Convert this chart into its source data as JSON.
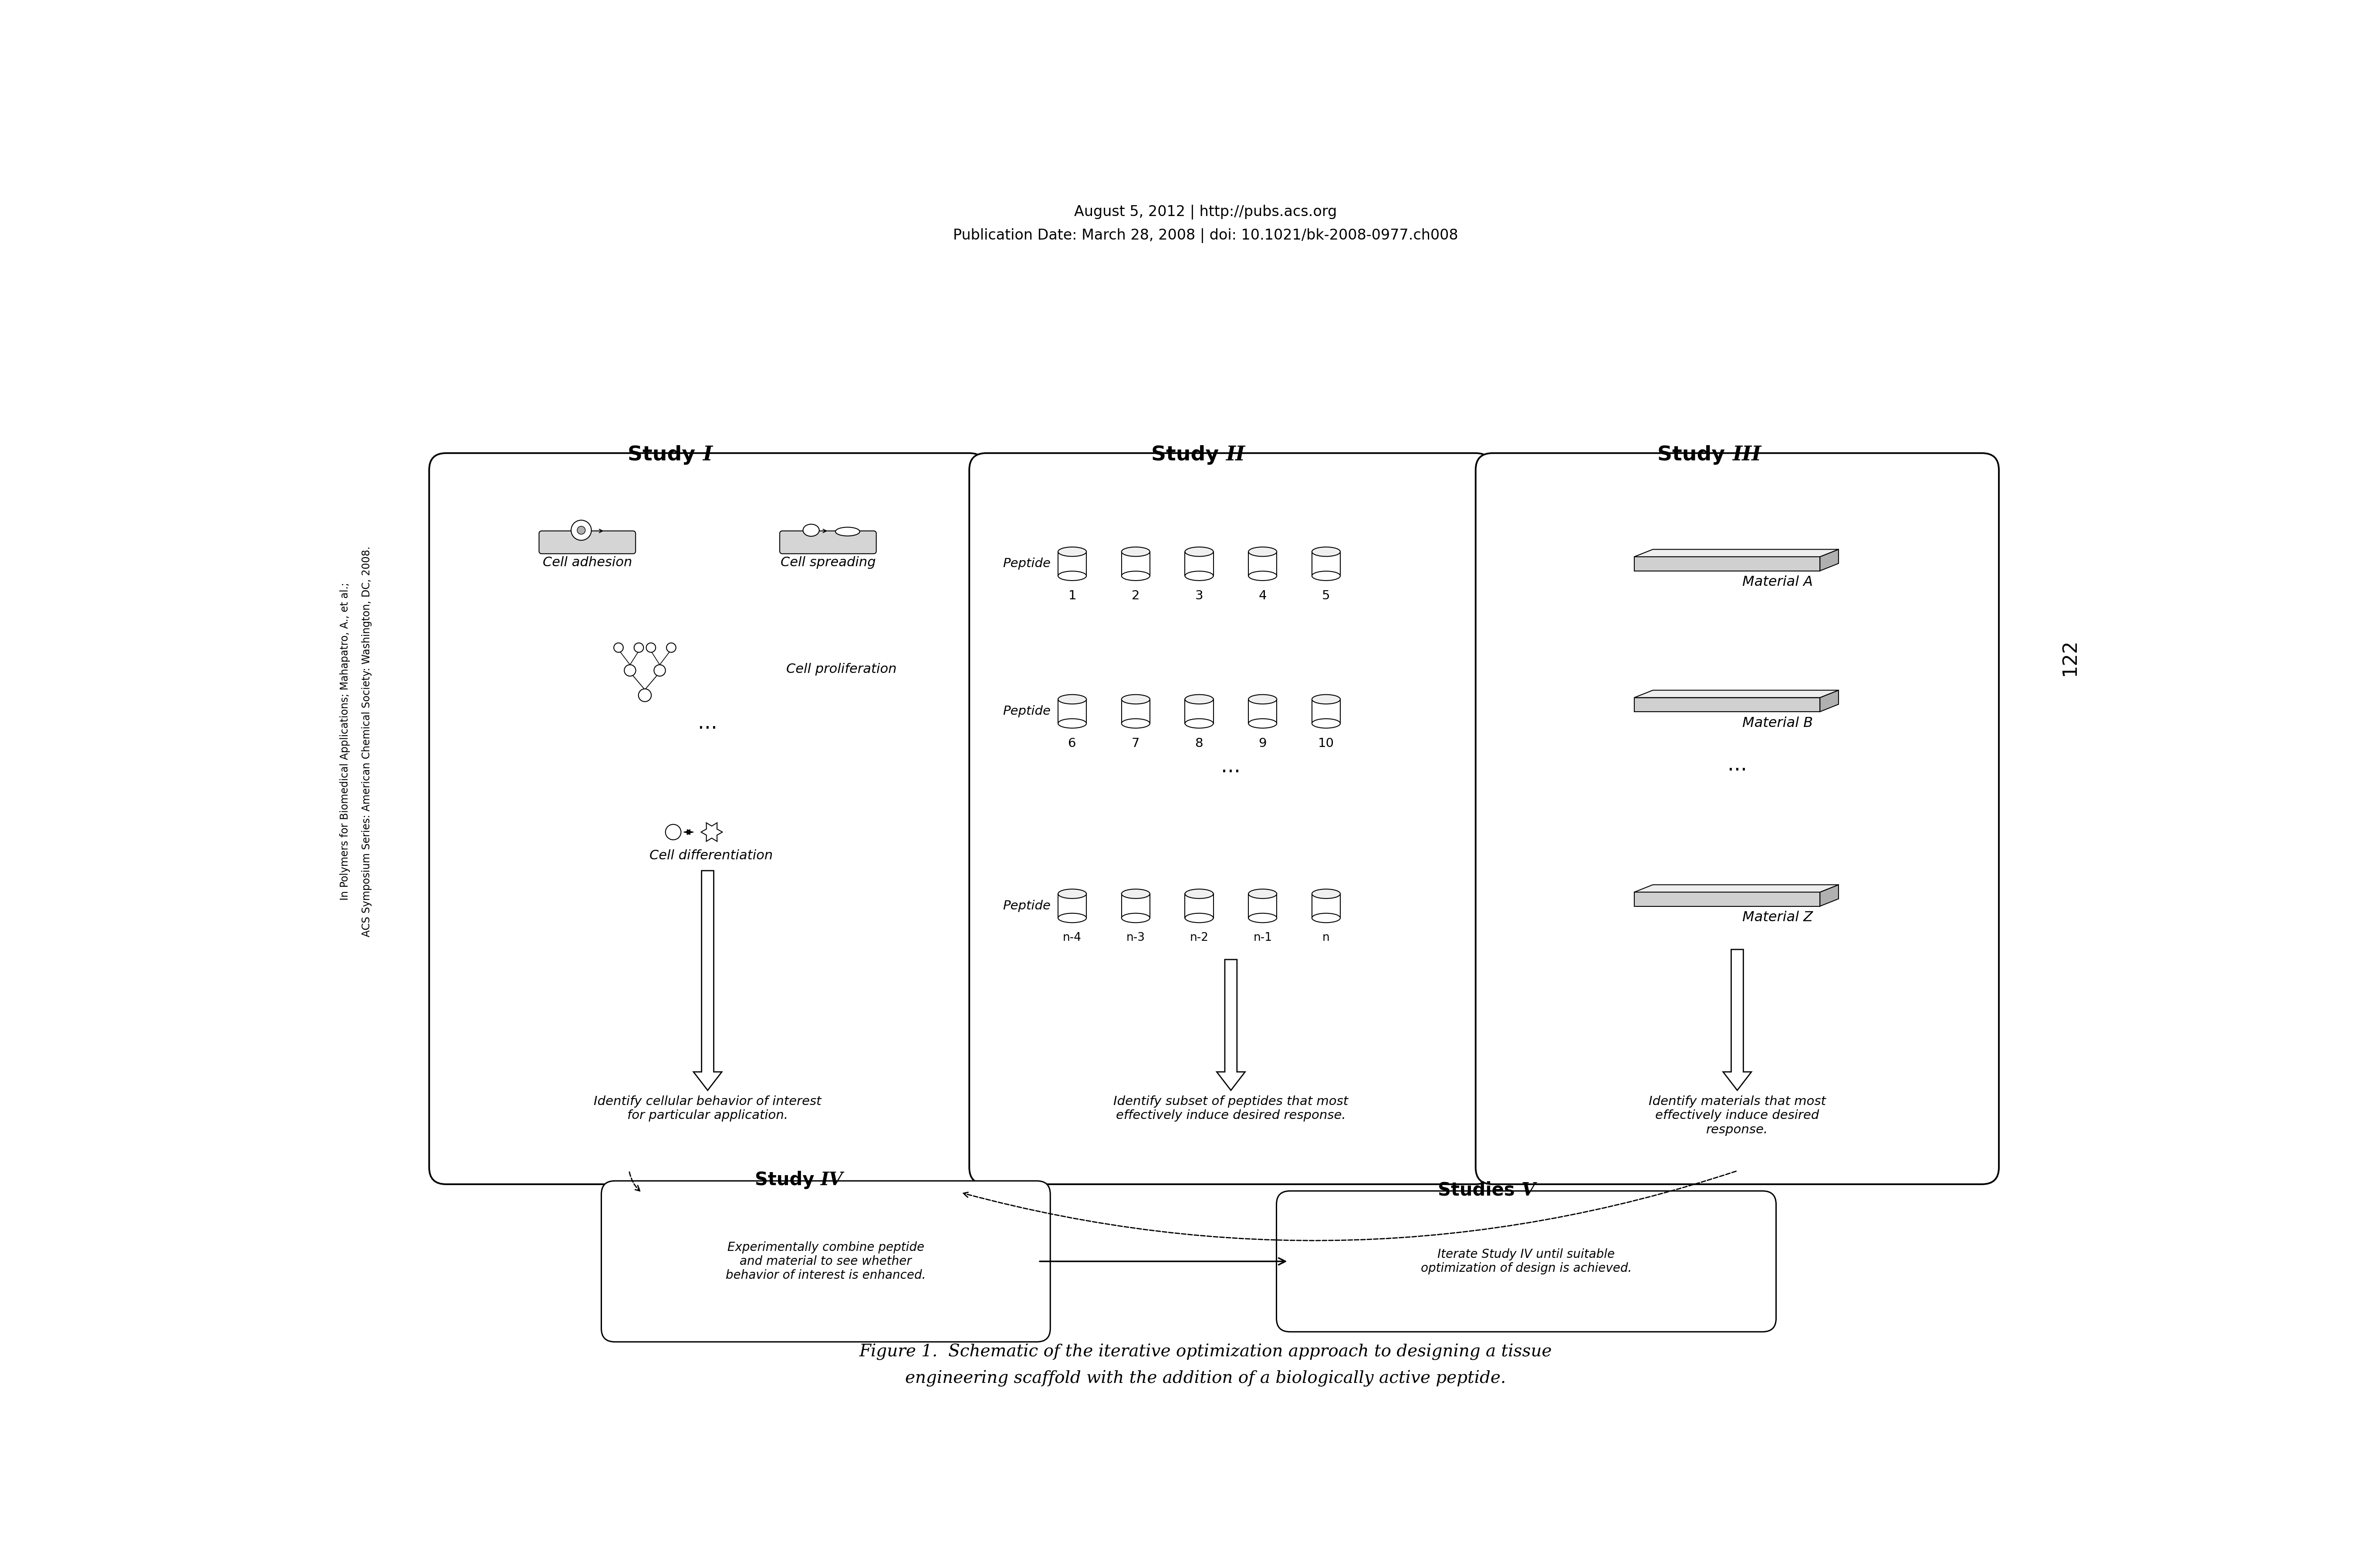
{
  "header_line1": "August 5, 2012 | http://pubs.acs.org",
  "header_line2": "Publication Date: March 28, 2008 | doi: 10.1021/bk-2008-0977.ch008",
  "page_number": "122",
  "side_text1": "ACS Symposium Series: American Chemical Society: Washington, DC, 2008.",
  "side_text2": "In Polymers for Biomedical Applications; Mahapatro, A., et al.;",
  "study1_label1": "Cell adhesion",
  "study1_label2": "Cell spreading",
  "study1_label3": "Cell proliferation",
  "study1_label4": "Cell differentiation",
  "study1_bottom": "Identify cellular behavior of interest\nfor particular application.",
  "study2_bottom": "Identify subset of peptides that most\neffectively induce desired response.",
  "study3_mat_a": "Material A",
  "study3_mat_b": "Material B",
  "study3_mat_z": "Material Z",
  "study3_bottom": "Identify materials that most\neffectively induce desired\nresponse.",
  "study4_box": "Experimentally combine peptide\nand material to see whether\nbehavior of interest is enhanced.",
  "study5_box": "Iterate Study IV until suitable\noptimization of design is achieved.",
  "figure_caption_line1": "Figure 1.  Schematic of the iterative optimization approach to designing a tissue",
  "figure_caption_line2": "engineering scaffold with the addition of a biologically active peptide.",
  "bg_color": "#ffffff"
}
